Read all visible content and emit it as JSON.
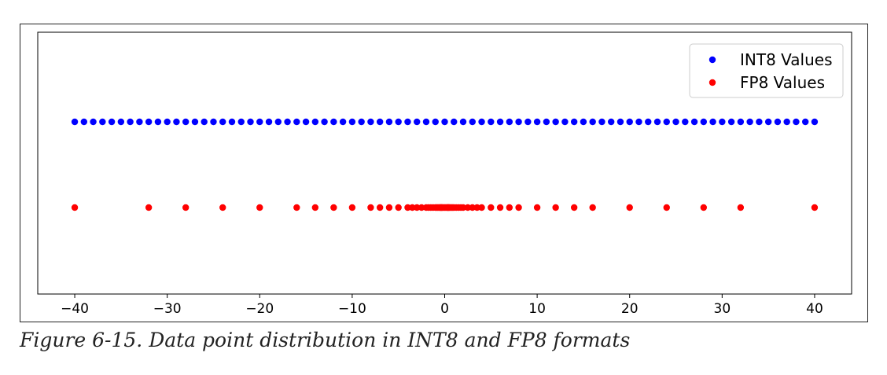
{
  "chart_data": {
    "type": "scatter",
    "title": "",
    "xlabel": "",
    "ylabel": "",
    "xlim": [
      -44,
      44
    ],
    "xticks": [
      -40,
      -30,
      -20,
      -10,
      0,
      10,
      20,
      30,
      40
    ],
    "xtick_labels": [
      "−40",
      "−30",
      "−20",
      "−10",
      "0",
      "10",
      "20",
      "30",
      "40"
    ],
    "grid": false,
    "legend_position": "top-right",
    "series": [
      {
        "name": "INT8 Values",
        "color": "#0000ff",
        "x": [
          -40,
          -39,
          -38,
          -37,
          -36,
          -35,
          -34,
          -33,
          -32,
          -31,
          -30,
          -29,
          -28,
          -27,
          -26,
          -25,
          -24,
          -23,
          -22,
          -21,
          -20,
          -19,
          -18,
          -17,
          -16,
          -15,
          -14,
          -13,
          -12,
          -11,
          -10,
          -9,
          -8,
          -7,
          -6,
          -5,
          -4,
          -3,
          -2,
          -1,
          0,
          1,
          2,
          3,
          4,
          5,
          6,
          7,
          8,
          9,
          10,
          11,
          12,
          13,
          14,
          15,
          16,
          17,
          18,
          19,
          20,
          21,
          22,
          23,
          24,
          25,
          26,
          27,
          28,
          29,
          30,
          31,
          32,
          33,
          34,
          35,
          36,
          37,
          38,
          39,
          40
        ]
      },
      {
        "name": "FP8 Values",
        "color": "#ff0000",
        "x": [
          -40,
          -32,
          -28,
          -24,
          -20,
          -16,
          -14,
          -12,
          -10,
          -8,
          -7,
          -6,
          -5,
          -4,
          -3.5,
          -3,
          -2.5,
          -2,
          -1.75,
          -1.5,
          -1.25,
          -1,
          -0.875,
          -0.75,
          -0.625,
          -0.5,
          -0.4375,
          -0.375,
          -0.3125,
          -0.25,
          -0.125,
          0,
          0.125,
          0.25,
          0.3125,
          0.375,
          0.4375,
          0.5,
          0.625,
          0.75,
          0.875,
          1,
          1.25,
          1.5,
          1.75,
          2,
          2.5,
          3,
          3.5,
          4,
          5,
          6,
          7,
          8,
          10,
          12,
          14,
          16,
          20,
          24,
          28,
          32,
          40
        ]
      }
    ]
  },
  "caption": "Figure 6-15. Data point distribution in INT8 and FP8 formats"
}
